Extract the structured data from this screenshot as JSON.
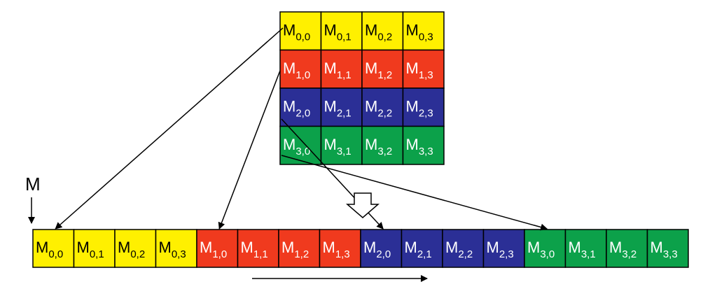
{
  "colors": {
    "yellow": "#FFF000",
    "red": "#F03A1E",
    "blue": "#2B2F96",
    "green": "#0CA14A",
    "line": "#000000"
  },
  "matrix": {
    "rows": [
      {
        "color": "yellow",
        "text_color": "#000000",
        "cells": [
          {
            "base": "M",
            "sub": "0,0"
          },
          {
            "base": "M",
            "sub": "0,1"
          },
          {
            "base": "M",
            "sub": "0,2"
          },
          {
            "base": "M",
            "sub": "0,3"
          }
        ]
      },
      {
        "color": "red",
        "text_color": "#FFFFFF",
        "cells": [
          {
            "base": "M",
            "sub": "1,0"
          },
          {
            "base": "M",
            "sub": "1,1"
          },
          {
            "base": "M",
            "sub": "1,2"
          },
          {
            "base": "M",
            "sub": "1,3"
          }
        ]
      },
      {
        "color": "blue",
        "text_color": "#FFFFFF",
        "cells": [
          {
            "base": "M",
            "sub": "2,0"
          },
          {
            "base": "M",
            "sub": "2,1"
          },
          {
            "base": "M",
            "sub": "2,2"
          },
          {
            "base": "M",
            "sub": "2,3"
          }
        ]
      },
      {
        "color": "green",
        "text_color": "#FFFFFF",
        "cells": [
          {
            "base": "M",
            "sub": "3,0"
          },
          {
            "base": "M",
            "sub": "3,1"
          },
          {
            "base": "M",
            "sub": "3,2"
          },
          {
            "base": "M",
            "sub": "3,3"
          }
        ]
      }
    ]
  },
  "pointer_label": "M",
  "linear": {
    "description_order": "row-major"
  },
  "icons": {
    "flatten": "hollow-down-arrow-icon",
    "pointer": "down-arrow-icon",
    "direction": "right-arrow-icon"
  }
}
